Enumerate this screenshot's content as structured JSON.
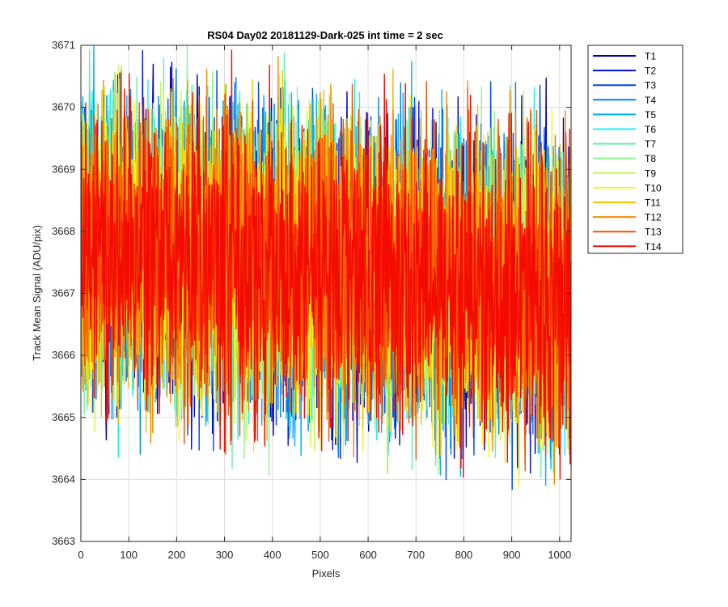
{
  "chart_data": {
    "type": "line",
    "title": "RS04 Day02 20181129-Dark-025 int time = 2 sec",
    "xlabel": "Pixels",
    "ylabel": "Track Mean Signal (ADU/pix)",
    "xlim": [
      0,
      1024
    ],
    "ylim": [
      3663,
      3671
    ],
    "xticks": [
      0,
      100,
      200,
      300,
      400,
      500,
      600,
      700,
      800,
      900,
      1000
    ],
    "yticks": [
      3663,
      3664,
      3665,
      3666,
      3667,
      3668,
      3669,
      3670,
      3671
    ],
    "grid": true,
    "legend_position": "outside-top-right",
    "noise": {
      "n_points": 1024,
      "center_start": 3667.8,
      "center_end": 3667.0,
      "typical_spread": 1.2,
      "max_observed": 3671.0,
      "min_observed": 3663.05
    },
    "series": [
      {
        "name": "T1",
        "color": "#0000b4"
      },
      {
        "name": "T2",
        "color": "#0010dd"
      },
      {
        "name": "T3",
        "color": "#0046f2"
      },
      {
        "name": "T4",
        "color": "#0080f5"
      },
      {
        "name": "T5",
        "color": "#00b0f5"
      },
      {
        "name": "T6",
        "color": "#1ef0f0"
      },
      {
        "name": "T7",
        "color": "#64f0b4"
      },
      {
        "name": "T8",
        "color": "#8cf58c"
      },
      {
        "name": "T9",
        "color": "#c8f550"
      },
      {
        "name": "T10",
        "color": "#f5f51e"
      },
      {
        "name": "T11",
        "color": "#f5c300"
      },
      {
        "name": "T12",
        "color": "#f58c00"
      },
      {
        "name": "T13",
        "color": "#f55000"
      },
      {
        "name": "T14",
        "color": "#f50a00"
      }
    ]
  }
}
